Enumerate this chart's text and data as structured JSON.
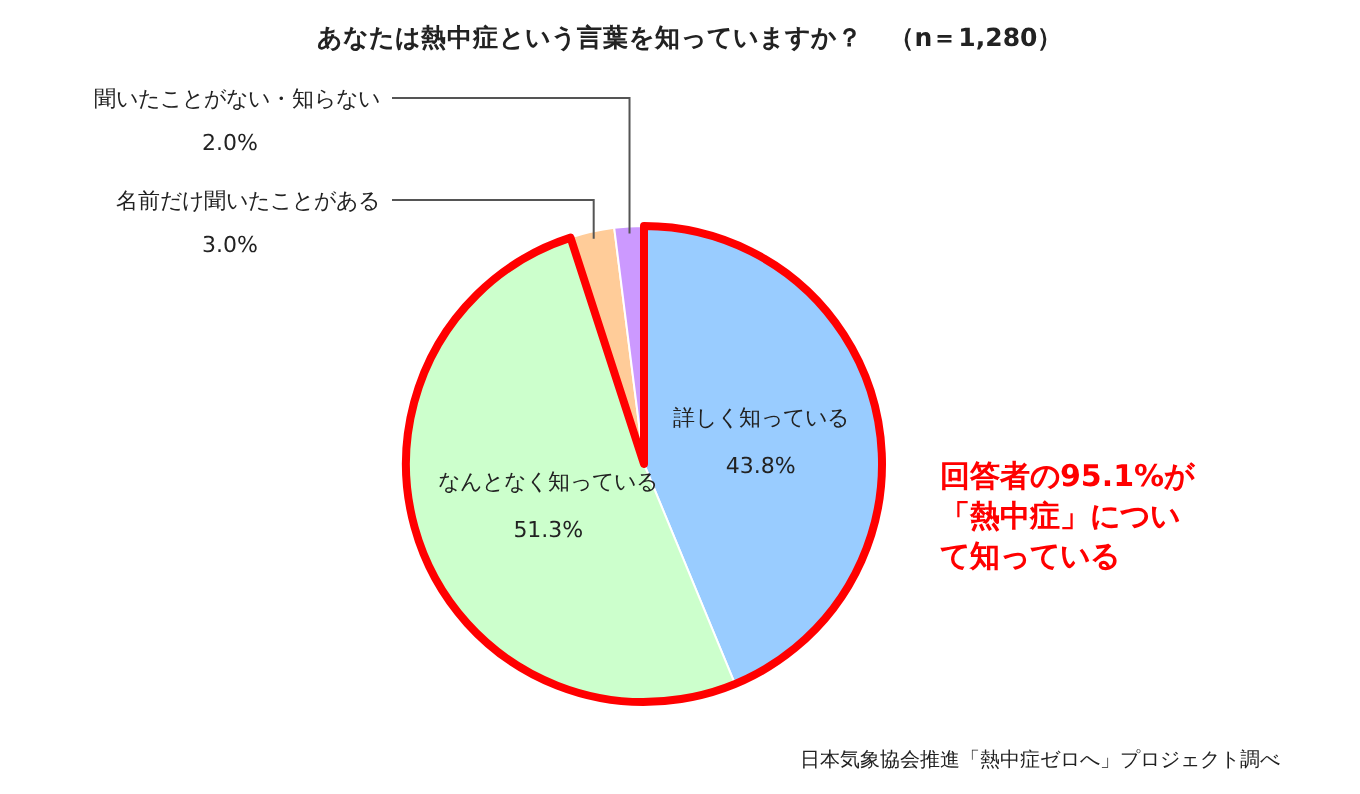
{
  "chart_data": {
    "type": "pie",
    "title": "あなたは熱中症という言葉を知っていますか？　（n＝1,280）",
    "categories": [
      "詳しく知っている",
      "なんとなく知っている",
      "名前だけ聞いたことがある",
      "聞いたことがない・知らない"
    ],
    "values": [
      43.8,
      51.3,
      3.0,
      2.0
    ],
    "value_labels": [
      "43.8%",
      "51.3%",
      "3.0%",
      "2.0%"
    ],
    "colors": [
      "#99ccff",
      "#ccffcc",
      "#ffcc99",
      "#cc99ff"
    ],
    "legend": false,
    "annotations": [
      "回答者の95.1%が「熱中症」について知っている",
      "日本気象協会推進「熱中症ゼロへ」プロジェクト調べ"
    ]
  }
}
